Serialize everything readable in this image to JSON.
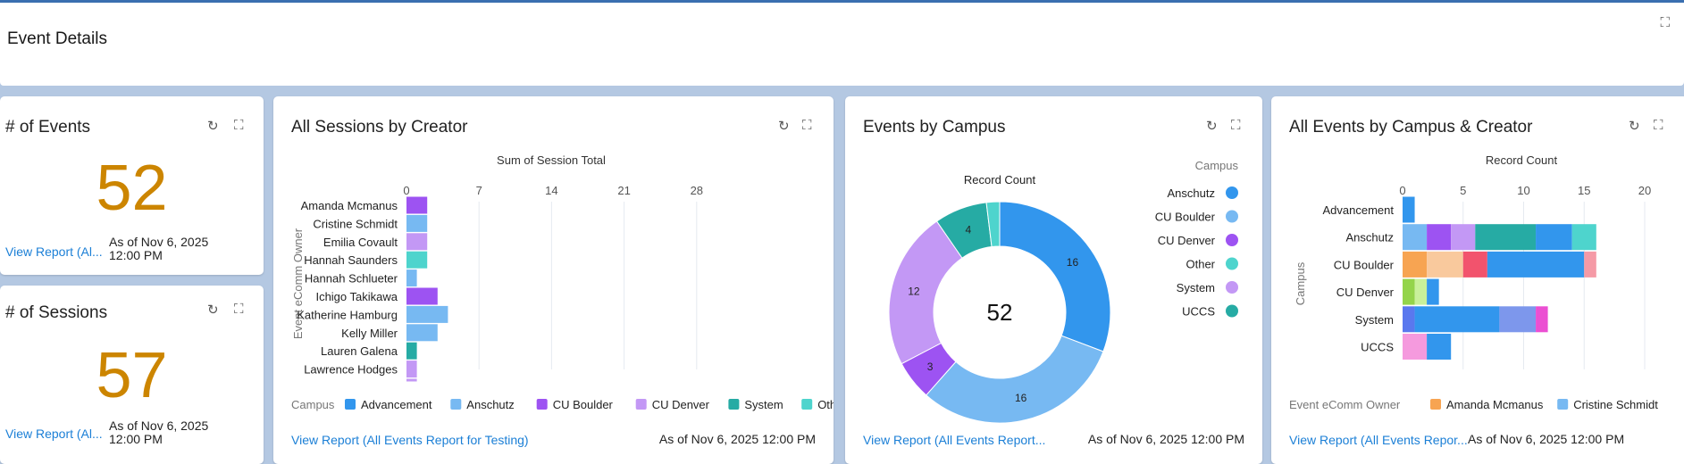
{
  "page": {
    "title": "Event Details"
  },
  "events_card": {
    "title": "# of Events",
    "value": "52",
    "link": "View Report (Al...",
    "asof": "As of Nov 6, 2025",
    "asof_time": "12:00 PM"
  },
  "sessions_card": {
    "title": "# of Sessions",
    "value": "57",
    "link": "View Report (Al...",
    "asof": "As of Nov 6, 2025",
    "asof_time": "12:00 PM"
  },
  "icons": {
    "refresh": "refresh-icon",
    "expand": "expand-icon"
  },
  "sessions_chart": {
    "title": "All Sessions by Creator",
    "link": "View Report (All Events Report for Testing)",
    "asof": "As of Nov 6, 2025 12:00 PM",
    "legend_title": "Campus"
  },
  "campus_chart": {
    "title": "Events by Campus",
    "link": "View Report (All Events Report...",
    "asof": "As of Nov 6, 2025 12:00 PM",
    "legend_title": "Campus"
  },
  "stacked_chart": {
    "title": "All Events by Campus & Creator",
    "link": "View Report (All Events Repor...",
    "asof": "As of Nov 6, 2025 12:00 PM",
    "legend_title": "Event eComm Owner"
  },
  "chart_data": [
    {
      "type": "bar",
      "orientation": "horizontal",
      "xlabel": "Sum of Session Total",
      "ylabel": "Event eComm Owner",
      "xticks": [
        0,
        7,
        14,
        21,
        28
      ],
      "xlim": [
        0,
        28
      ],
      "categories": [
        "Amanda Mcmanus",
        "Cristine Schmidt",
        "Emilia Covault",
        "Hannah Saunders",
        "Hannah Schlueter",
        "Ichigo Takikawa",
        "Katherine Hamburg",
        "Kelly Miller",
        "Lauren Galena",
        "Lawrence Hodges"
      ],
      "values": [
        2,
        2,
        2,
        2,
        1,
        3,
        4,
        3,
        1,
        1
      ],
      "bar_campus": [
        "CU Boulder",
        "Anschutz",
        "CU Denver",
        "Other",
        "Anschutz",
        "CU Boulder",
        "Anschutz",
        "Anschutz",
        "System",
        "CU Denver"
      ],
      "legend": [
        {
          "name": "Advancement",
          "color": "#3296ed"
        },
        {
          "name": "Anschutz",
          "color": "#77b9f2"
        },
        {
          "name": "CU Boulder",
          "color": "#9d53f2"
        },
        {
          "name": "CU Denver",
          "color": "#c398f5"
        },
        {
          "name": "System",
          "color": "#26aba4"
        },
        {
          "name": "Other",
          "color": "#4ed4cd"
        }
      ],
      "legend_position": "bottom",
      "grid": true
    },
    {
      "type": "pie",
      "donut": true,
      "title": "Record Count",
      "center_label": "52",
      "legend_title": "Campus",
      "legend_position": "right",
      "slices": [
        {
          "name": "Anschutz",
          "value": 16,
          "color": "#3296ed"
        },
        {
          "name": "CU Boulder",
          "value": 16,
          "color": "#77b9f2"
        },
        {
          "name": "CU Denver",
          "value": 3,
          "color": "#9d53f2"
        },
        {
          "name": "System",
          "value": 12,
          "color": "#c398f5"
        },
        {
          "name": "UCCS",
          "value": 4,
          "color": "#26aba4"
        },
        {
          "name": "Other",
          "value": 1,
          "color": "#4ed4cd"
        }
      ],
      "legend": [
        "Anschutz",
        "CU Boulder",
        "CU Denver",
        "Other",
        "System",
        "UCCS"
      ]
    },
    {
      "type": "bar",
      "orientation": "horizontal",
      "stacked": true,
      "xlabel": "Record Count",
      "ylabel": "Campus",
      "xticks": [
        0,
        5,
        10,
        15,
        20
      ],
      "xlim": [
        0,
        20
      ],
      "grid": true,
      "legend_position": "bottom",
      "categories": [
        "Advancement",
        "Anschutz",
        "CU Boulder",
        "CU Denver",
        "System",
        "UCCS"
      ],
      "segments": [
        [
          {
            "value": 1,
            "color": "#3296ed"
          }
        ],
        [
          {
            "value": 2,
            "color": "#77b9f2"
          },
          {
            "value": 2,
            "color": "#9d53f2"
          },
          {
            "value": 2,
            "color": "#c398f5"
          },
          {
            "value": 5,
            "color": "#26aba4"
          },
          {
            "value": 3,
            "color": "#3296ed"
          },
          {
            "value": 2,
            "color": "#4ed4cd"
          }
        ],
        [
          {
            "value": 2,
            "color": "#f7a452"
          },
          {
            "value": 3,
            "color": "#f9c99d"
          },
          {
            "value": 2,
            "color": "#f2536d"
          },
          {
            "value": 8,
            "color": "#3296ed"
          },
          {
            "value": 1,
            "color": "#f59aa6"
          }
        ],
        [
          {
            "value": 1,
            "color": "#94d44a"
          },
          {
            "value": 1,
            "color": "#c9f09a"
          },
          {
            "value": 1,
            "color": "#3296ed"
          }
        ],
        [
          {
            "value": 1,
            "color": "#5a78ee"
          },
          {
            "value": 7,
            "color": "#3296ed"
          },
          {
            "value": 3,
            "color": "#7d97ec"
          },
          {
            "value": 1,
            "color": "#eb4fd2"
          }
        ],
        [
          {
            "value": 2,
            "color": "#f59ade"
          },
          {
            "value": 2,
            "color": "#3296ed"
          }
        ]
      ],
      "legend": [
        {
          "name": "Amanda Mcmanus",
          "color": "#f7a452"
        },
        {
          "name": "Cristine Schmidt",
          "color": "#77b9f2"
        }
      ]
    }
  ]
}
